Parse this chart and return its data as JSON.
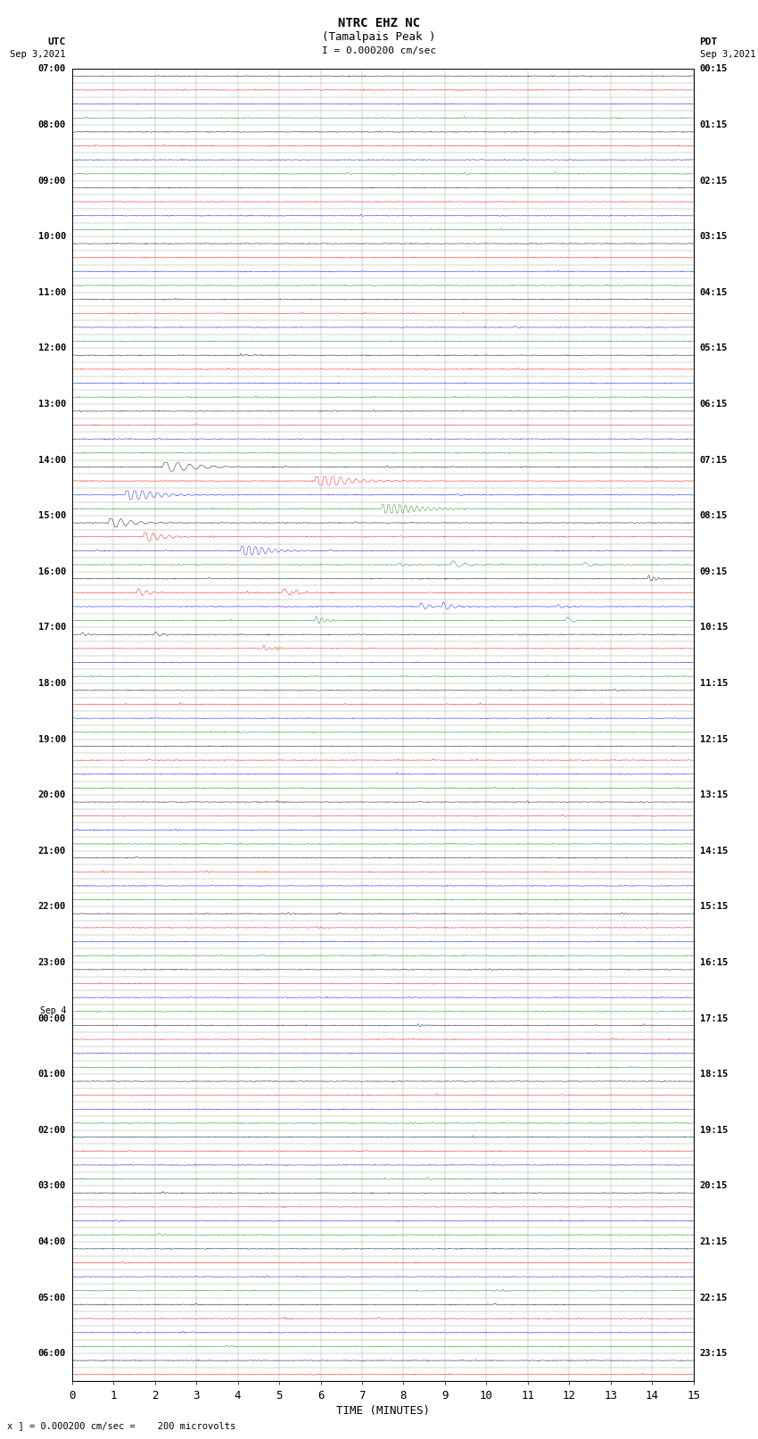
{
  "title_line1": "NTRC EHZ NC",
  "title_line2": "(Tamalpais Peak )",
  "title_line3": "I = 0.000200 cm/sec",
  "left_header_line1": "UTC",
  "left_header_line2": "Sep 3,2021",
  "right_header_line1": "PDT",
  "right_header_line2": "Sep 3,2021",
  "xlabel": "TIME (MINUTES)",
  "footer": "x ] = 0.000200 cm/sec =    200 microvolts",
  "utc_labels": [
    "07:00",
    "",
    "",
    "",
    "08:00",
    "",
    "",
    "",
    "09:00",
    "",
    "",
    "",
    "10:00",
    "",
    "",
    "",
    "11:00",
    "",
    "",
    "",
    "12:00",
    "",
    "",
    "",
    "13:00",
    "",
    "",
    "",
    "14:00",
    "",
    "",
    "",
    "15:00",
    "",
    "",
    "",
    "16:00",
    "",
    "",
    "",
    "17:00",
    "",
    "",
    "",
    "18:00",
    "",
    "",
    "",
    "19:00",
    "",
    "",
    "",
    "20:00",
    "",
    "",
    "",
    "21:00",
    "",
    "",
    "",
    "22:00",
    "",
    "",
    "",
    "23:00",
    "",
    "",
    "",
    "00:00",
    "",
    "",
    "",
    "01:00",
    "",
    "",
    "",
    "02:00",
    "",
    "",
    "",
    "03:00",
    "",
    "",
    "",
    "04:00",
    "",
    "",
    "",
    "05:00",
    "",
    "",
    "",
    "06:00",
    ""
  ],
  "pdt_labels": [
    "00:15",
    "",
    "",
    "",
    "01:15",
    "",
    "",
    "",
    "02:15",
    "",
    "",
    "",
    "03:15",
    "",
    "",
    "",
    "04:15",
    "",
    "",
    "",
    "05:15",
    "",
    "",
    "",
    "06:15",
    "",
    "",
    "",
    "07:15",
    "",
    "",
    "",
    "08:15",
    "",
    "",
    "",
    "09:15",
    "",
    "",
    "",
    "10:15",
    "",
    "",
    "",
    "11:15",
    "",
    "",
    "",
    "12:15",
    "",
    "",
    "",
    "13:15",
    "",
    "",
    "",
    "14:15",
    "",
    "",
    "",
    "15:15",
    "",
    "",
    "",
    "16:15",
    "",
    "",
    "",
    "17:15",
    "",
    "",
    "",
    "18:15",
    "",
    "",
    "",
    "19:15",
    "",
    "",
    "",
    "20:15",
    "",
    "",
    "",
    "21:15",
    "",
    "",
    "",
    "22:15",
    "",
    "",
    "",
    "23:15",
    ""
  ],
  "sep4_label_index": 68,
  "num_traces": 94,
  "trace_colors_cycle": [
    "black",
    "red",
    "blue",
    "green"
  ],
  "xmin": 0,
  "xmax": 15,
  "bg_color": "#ffffff",
  "grid_color": "#888888",
  "trace_amplitude": 0.3
}
